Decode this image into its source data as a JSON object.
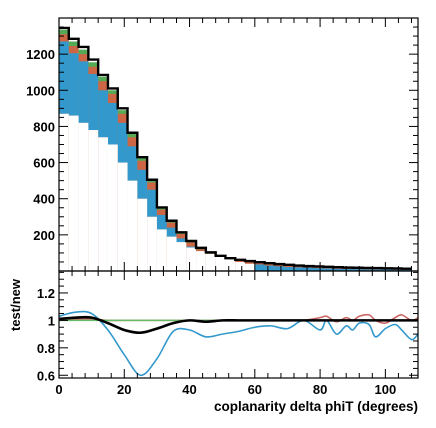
{
  "chart_data": [
    {
      "type": "bar",
      "title": "",
      "xlabel": "",
      "ylabel": "",
      "xlim": [
        0,
        110
      ],
      "ylim": [
        0,
        1400
      ],
      "bin_width": 3,
      "y_ticks": [
        200,
        400,
        600,
        800,
        1000,
        1200
      ],
      "y_tick_labels": [
        "200",
        "400",
        "600",
        "800",
        "1000",
        "1200"
      ],
      "band_bottom": [
        870,
        860,
        820,
        780,
        740,
        700,
        600,
        500,
        400,
        300,
        230,
        190,
        160,
        130,
        110,
        95,
        80,
        65,
        50,
        40
      ],
      "series": [
        {
          "name": "",
          "color": "#3399cc",
          "values": [
            1270,
            1205,
            1160,
            1090,
            1000,
            930,
            820,
            690,
            560,
            450,
            310,
            240,
            180,
            135,
            105,
            80,
            55,
            50,
            45,
            40,
            36,
            30,
            26,
            22,
            20,
            18,
            16,
            14,
            12,
            11,
            10,
            9,
            8,
            8,
            7,
            7
          ]
        },
        {
          "name": "",
          "color": "#cc6644",
          "values": [
            1310,
            1245,
            1200,
            1130,
            1050,
            980,
            870,
            740,
            610,
            490,
            340,
            268,
            205,
            158,
            120,
            96,
            78,
            65,
            56,
            50,
            44,
            38,
            33,
            29,
            26,
            23,
            21,
            19,
            17,
            15,
            14,
            13,
            12,
            11,
            10,
            10
          ]
        },
        {
          "name": "",
          "color": "#55aa55",
          "values": [
            1335,
            1270,
            1225,
            1155,
            1075,
            1000,
            890,
            758,
            625,
            502,
            350,
            276,
            212,
            164,
            126,
            101,
            82,
            69,
            60,
            53,
            47,
            41,
            36,
            32,
            28,
            25,
            23,
            21,
            19,
            17,
            16,
            15,
            14,
            13,
            12,
            11
          ]
        },
        {
          "name": "",
          "color": "#000000",
          "values": [
            1345,
            1285,
            1240,
            1170,
            1085,
            1010,
            900,
            765,
            630,
            505,
            352,
            278,
            214,
            166,
            128,
            103,
            84,
            71,
            62,
            55,
            49,
            43,
            38,
            34,
            30,
            27,
            25,
            23,
            21,
            19,
            18,
            17,
            16,
            15,
            14,
            13
          ]
        }
      ]
    },
    {
      "type": "line",
      "title": "",
      "xlabel": "coplanarity delta phiT (degrees)",
      "ylabel": "test/new",
      "xlim": [
        0,
        110
      ],
      "ylim": [
        0.58,
        1.36
      ],
      "x_ticks": [
        0,
        20,
        40,
        60,
        80,
        100
      ],
      "x_tick_labels": [
        "0",
        "20",
        "40",
        "60",
        "80",
        "100"
      ],
      "y_ticks": [
        0.6,
        0.8,
        1.0,
        1.2
      ],
      "y_tick_labels": [
        "0.6",
        "0.8",
        "1",
        "1.2"
      ],
      "x": [
        0,
        5,
        10,
        15,
        20,
        25,
        30,
        35,
        40,
        45,
        50,
        55,
        60,
        65,
        70,
        75,
        80,
        82,
        85,
        88,
        90,
        92,
        95,
        97,
        100,
        103,
        105,
        108,
        110
      ],
      "series": [
        {
          "name": "",
          "color": "#3399cc",
          "values": [
            1.03,
            1.06,
            1.05,
            0.93,
            0.75,
            0.6,
            0.72,
            0.92,
            0.93,
            0.88,
            0.9,
            0.92,
            0.95,
            0.96,
            0.94,
            1.0,
            0.93,
            1.0,
            0.9,
            0.96,
            0.93,
            0.98,
            0.97,
            0.88,
            0.94,
            0.97,
            0.93,
            0.86,
            0.9
          ]
        },
        {
          "name": "",
          "color": "#cc6666",
          "values": [
            1.01,
            1.01,
            1.01,
            1.0,
            1.0,
            1.0,
            1.0,
            1.0,
            1.0,
            1.0,
            1.0,
            1.0,
            1.0,
            1.0,
            1.0,
            1.0,
            1.02,
            1.03,
            0.99,
            1.02,
            1.0,
            1.03,
            1.04,
            1.0,
            0.98,
            1.02,
            1.04,
            1.0,
            1.02
          ]
        },
        {
          "name": "",
          "color": "#66bb66",
          "values": [
            1.0,
            1.0,
            1.0,
            1.0,
            1.0,
            1.0,
            1.0,
            1.0,
            1.0,
            1.0,
            1.0,
            1.0,
            1.0,
            1.0,
            1.0,
            1.0,
            1.0,
            1.0,
            1.0,
            1.0,
            1.0,
            1.0,
            1.0,
            1.0,
            1.0,
            1.0,
            1.0,
            1.0,
            1.0
          ]
        },
        {
          "name": "",
          "color": "#000000",
          "values": [
            1.01,
            1.02,
            1.02,
            0.98,
            0.93,
            0.91,
            0.94,
            0.98,
            1.0,
            0.99,
            1.0,
            1.0,
            1.0,
            1.0,
            1.0,
            1.0,
            1.0,
            1.0,
            1.0,
            1.0,
            1.0,
            1.0,
            1.0,
            1.0,
            1.0,
            1.0,
            1.0,
            1.0,
            1.0
          ]
        }
      ]
    }
  ]
}
